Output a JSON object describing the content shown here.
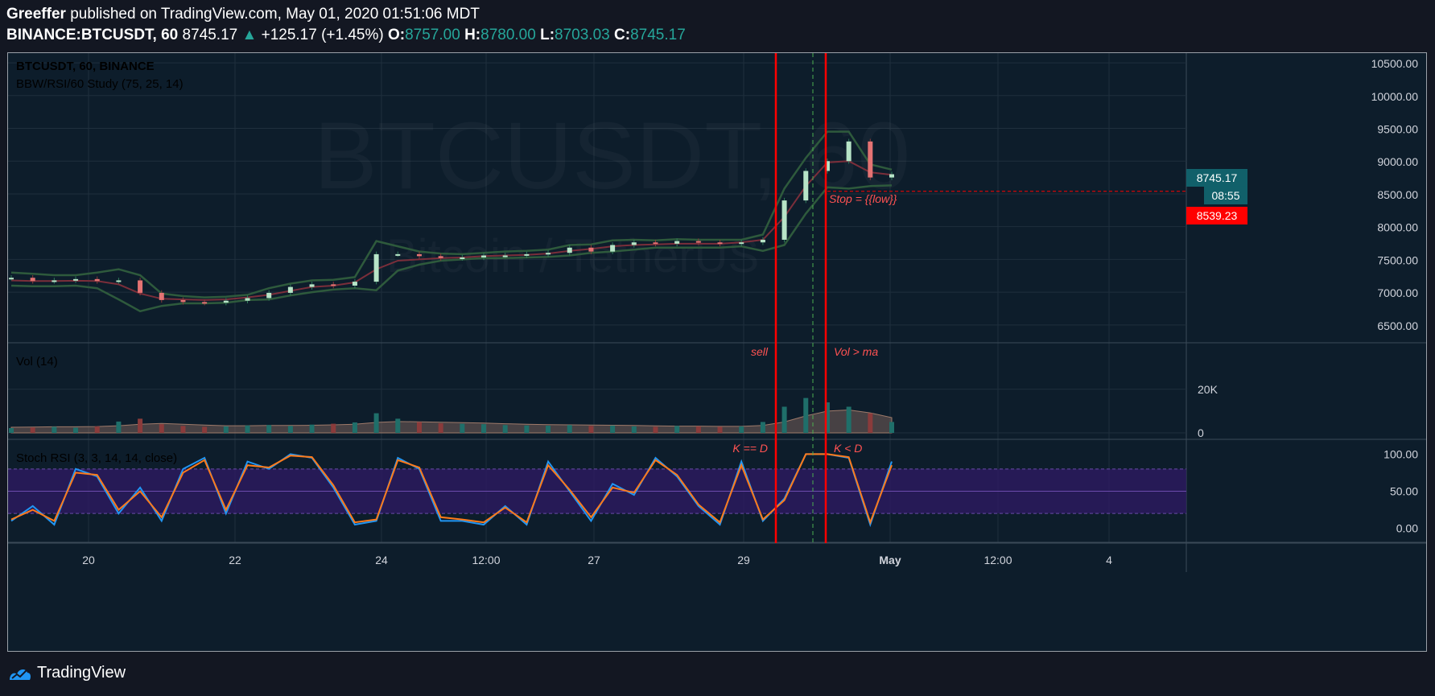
{
  "header": {
    "author": "Greeffer",
    "published_text": "published on TradingView.com, May 01, 2020 01:51:06 MDT",
    "symbol": "BINANCE:BTCUSDT, 60",
    "last": "8745.17",
    "change": "+125.17 (+1.45%)",
    "o_label": "O:",
    "o_value": "8757.00",
    "h_label": "H:",
    "h_value": "8780.00",
    "l_label": "L:",
    "l_value": "8703.03",
    "c_label": "C:",
    "c_value": "8745.17"
  },
  "footer": {
    "brand": "TradingView"
  },
  "colors": {
    "bg": "#0d1d2b",
    "grid": "#1f2f3d",
    "up": "#26a69a",
    "down": "#ef5350",
    "band": "#2e5a3c",
    "basis": "#7a2e3a",
    "k_line": "#2196f3",
    "d_line": "#ff7a1a",
    "rsi_fill": "#2c1a5e",
    "marker": "#ff0000",
    "green_dash": "#4caf50"
  },
  "chart_data": [
    {
      "type": "line",
      "panel": "price",
      "legend": [
        "BTCUSDT, 60, BINANCE",
        "BBW/RSI/60 Study (75, 25, 14)"
      ],
      "watermark": "BTCUSDT, 60",
      "watermark_sub": "Bitcoin / TetherUS",
      "x_ticks": [
        "20",
        "22",
        "24",
        "12:00",
        "27",
        "29",
        "May",
        "12:00",
        "4"
      ],
      "y_ticks": [
        "10500.00",
        "10000.00",
        "9500.00",
        "9000.00",
        "8500.00",
        "8000.00",
        "7500.00",
        "7000.00",
        "6500.00"
      ],
      "ylim": [
        6400,
        10550
      ],
      "last_price_label": "8745.17",
      "countdown_label": "08:55",
      "stop_price_label": "8539.23",
      "stop_price": 8539.23,
      "stop_annotation": "Stop = {{low}}",
      "x": [
        0,
        5,
        10,
        15,
        20,
        25,
        30,
        35,
        40,
        45,
        50,
        55,
        60,
        65,
        70,
        75,
        80,
        85,
        90,
        95,
        100,
        105,
        110,
        115,
        120,
        125,
        130,
        135,
        140,
        145,
        150,
        155,
        160,
        165,
        170,
        175,
        180,
        185,
        190,
        195,
        200,
        205
      ],
      "series": [
        {
          "role": "close",
          "values": [
            7220,
            7170,
            7180,
            7200,
            7170,
            7180,
            6990,
            6880,
            6850,
            6840,
            6870,
            6910,
            6990,
            7080,
            7120,
            7100,
            7160,
            7580,
            7580,
            7550,
            7520,
            7530,
            7560,
            7560,
            7580,
            7600,
            7680,
            7620,
            7720,
            7760,
            7740,
            7780,
            7760,
            7740,
            7760,
            7800,
            8400,
            8850,
            9000,
            9300,
            8750,
            8800
          ]
        },
        {
          "role": "bb_upper",
          "values": [
            7300,
            7280,
            7260,
            7260,
            7300,
            7350,
            7260,
            6980,
            6940,
            6920,
            6930,
            6960,
            7060,
            7130,
            7180,
            7190,
            7230,
            7780,
            7700,
            7620,
            7590,
            7580,
            7600,
            7620,
            7630,
            7650,
            7720,
            7730,
            7790,
            7800,
            7790,
            7810,
            7800,
            7800,
            7800,
            7880,
            8580,
            9050,
            9450,
            9450,
            8950,
            8870
          ]
        },
        {
          "role": "bb_basis",
          "values": [
            7180,
            7170,
            7170,
            7175,
            7170,
            7120,
            6980,
            6900,
            6890,
            6880,
            6890,
            6920,
            6960,
            7020,
            7080,
            7100,
            7150,
            7350,
            7480,
            7500,
            7520,
            7530,
            7550,
            7560,
            7570,
            7590,
            7630,
            7660,
            7700,
            7720,
            7730,
            7740,
            7740,
            7740,
            7760,
            7800,
            8150,
            8620,
            8980,
            9000,
            8830,
            8790
          ]
        },
        {
          "role": "bb_lower",
          "values": [
            7100,
            7090,
            7090,
            7100,
            7060,
            6890,
            6710,
            6790,
            6830,
            6830,
            6840,
            6880,
            6890,
            6950,
            7000,
            7040,
            7060,
            7030,
            7330,
            7420,
            7480,
            7500,
            7520,
            7520,
            7530,
            7540,
            7560,
            7600,
            7620,
            7650,
            7680,
            7680,
            7680,
            7680,
            7700,
            7630,
            7720,
            8200,
            8600,
            8580,
            8620,
            8630
          ]
        }
      ]
    },
    {
      "type": "bar",
      "panel": "volume",
      "legend": "Vol (14)",
      "y_ticks": [
        "20K",
        "0"
      ],
      "ylim": [
        0,
        38000
      ],
      "x": [
        0,
        5,
        10,
        15,
        20,
        25,
        30,
        35,
        40,
        45,
        50,
        55,
        60,
        65,
        70,
        75,
        80,
        85,
        90,
        95,
        100,
        105,
        110,
        115,
        120,
        125,
        130,
        135,
        140,
        145,
        150,
        155,
        160,
        165,
        170,
        175,
        180,
        185,
        190,
        195,
        200,
        205
      ],
      "values": [
        2200,
        2500,
        2800,
        2400,
        3000,
        5200,
        6500,
        4000,
        3200,
        2800,
        3000,
        3400,
        3600,
        3200,
        3800,
        4200,
        4800,
        9000,
        6500,
        5000,
        4400,
        4200,
        4000,
        3600,
        3400,
        3300,
        3600,
        3200,
        3400,
        3000,
        2800,
        3200,
        3000,
        2800,
        3000,
        5000,
        12000,
        16000,
        14000,
        12000,
        9000,
        5000
      ],
      "ma_values": [
        2600,
        2700,
        2800,
        2800,
        2900,
        3300,
        4000,
        4300,
        4000,
        3600,
        3300,
        3300,
        3400,
        3400,
        3500,
        3700,
        4000,
        4800,
        5200,
        5100,
        4900,
        4700,
        4500,
        4200,
        4000,
        3800,
        3700,
        3600,
        3500,
        3400,
        3200,
        3100,
        3100,
        3000,
        3000,
        3400,
        5000,
        7800,
        10000,
        10500,
        9200,
        7000
      ]
    },
    {
      "type": "line",
      "panel": "stoch_rsi",
      "legend": "Stoch RSI (3, 3, 14, 14, close)",
      "y_ticks": [
        "100.00",
        "50.00",
        "0.00"
      ],
      "ylim": [
        -8,
        108
      ],
      "band": [
        20,
        80
      ],
      "x": [
        0,
        5,
        10,
        15,
        20,
        25,
        30,
        35,
        40,
        45,
        50,
        55,
        60,
        65,
        70,
        75,
        80,
        85,
        90,
        95,
        100,
        105,
        110,
        115,
        120,
        125,
        130,
        135,
        140,
        145,
        150,
        155,
        160,
        165,
        170,
        175,
        180,
        185,
        190,
        195,
        200,
        205
      ],
      "series": [
        {
          "role": "k",
          "values": [
            10,
            30,
            5,
            80,
            70,
            20,
            55,
            10,
            80,
            95,
            20,
            90,
            80,
            100,
            95,
            55,
            5,
            10,
            95,
            80,
            10,
            10,
            5,
            30,
            5,
            90,
            50,
            10,
            60,
            45,
            95,
            70,
            30,
            5,
            90,
            10,
            40,
            100,
            100,
            95,
            5,
            90
          ]
        },
        {
          "role": "d",
          "values": [
            12,
            25,
            10,
            75,
            72,
            25,
            50,
            15,
            75,
            92,
            25,
            85,
            82,
            98,
            96,
            58,
            8,
            12,
            92,
            82,
            15,
            12,
            8,
            28,
            8,
            85,
            52,
            15,
            55,
            48,
            92,
            72,
            32,
            8,
            85,
            12,
            38,
            100,
            100,
            96,
            8,
            85
          ]
        }
      ]
    }
  ],
  "annotations": {
    "sell": "sell",
    "vol_gt_ma": "Vol > ma",
    "k_eq_d": "K == D",
    "k_lt_d": "K < D"
  }
}
